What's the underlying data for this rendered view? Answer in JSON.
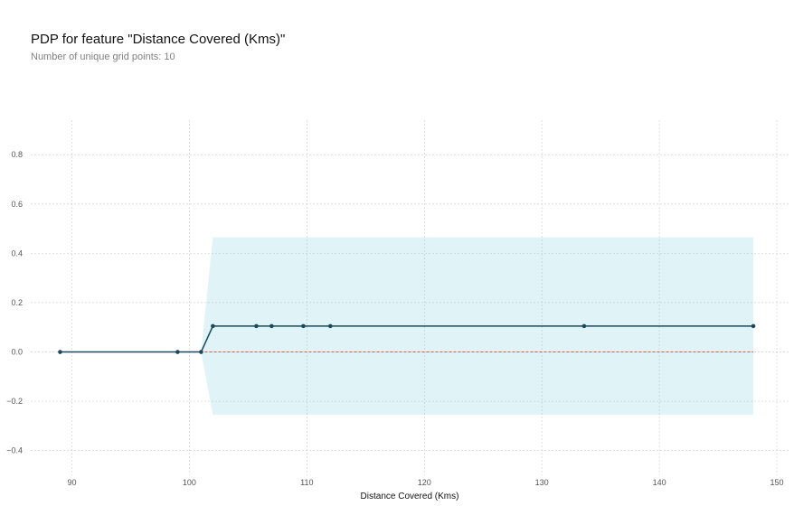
{
  "title": "PDP for feature \"Distance Covered (Kms)\"",
  "subtitle": "Number of unique grid points: 10",
  "chart_data": {
    "type": "line",
    "title": "PDP for feature \"Distance Covered (Kms)\"",
    "subtitle": "Number of unique grid points: 10",
    "xlabel": "Distance Covered (Kms)",
    "ylabel": "",
    "xlim": [
      86.5,
      151
    ],
    "ylim": [
      -0.5,
      0.94
    ],
    "xticks": [
      90,
      100,
      110,
      120,
      130,
      140,
      150
    ],
    "yticks": [
      -0.4,
      -0.2,
      0.0,
      0.2,
      0.4,
      0.6,
      0.8
    ],
    "grid": true,
    "series": [
      {
        "x": [
          89,
          99,
          101,
          102,
          105.7,
          107,
          109.7,
          112,
          133.6,
          148
        ],
        "y": [
          0,
          0,
          0,
          0.105,
          0.105,
          0.105,
          0.105,
          0.105,
          0.105,
          0.105
        ],
        "color": "#1a4a5a"
      }
    ],
    "confidence_band": {
      "x": [
        101,
        102,
        148
      ],
      "upper": [
        0,
        0.465,
        0.465
      ],
      "lower": [
        0,
        -0.255,
        -0.255
      ],
      "color": "#66c2d7"
    },
    "reference_line": {
      "y": 0,
      "color": "#e05a3a",
      "style": "dashed"
    }
  }
}
